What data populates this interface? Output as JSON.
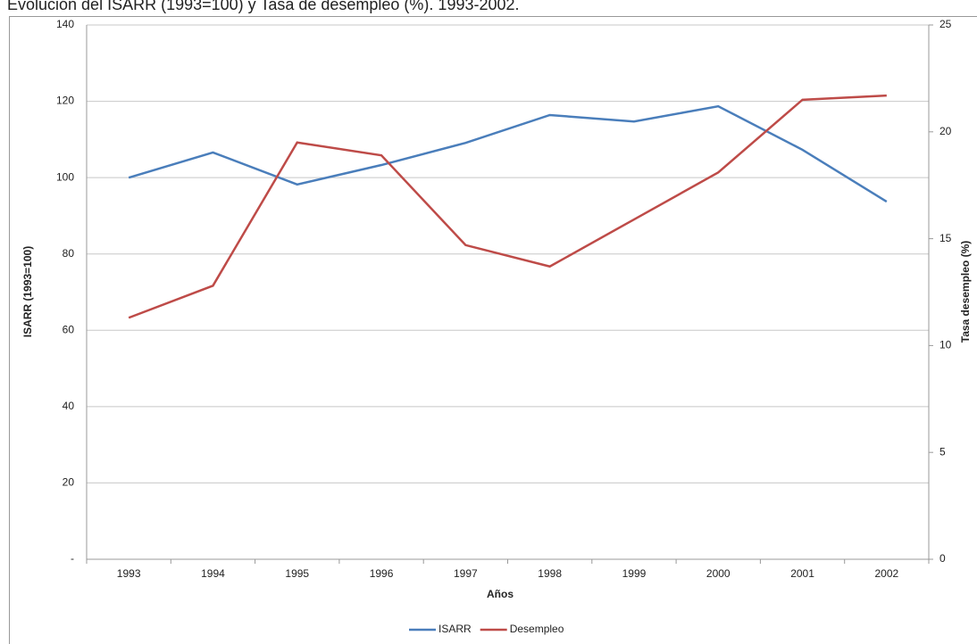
{
  "chart_data": {
    "type": "line",
    "title": "Evolución del ISARR (1993=100) y Tasa de desempleo (%). 1993-2002.",
    "x_label": "Años",
    "y_label": "ISARR (1993=100)",
    "y2_label": "Tasa desempleo (%)",
    "categories": [
      "1993",
      "1994",
      "1995",
      "1996",
      "1997",
      "1998",
      "1999",
      "2000",
      "2001",
      "2002"
    ],
    "series": [
      {
        "name": "ISARR",
        "color": "#4a7ebb",
        "values": [
          100,
          106.6,
          98.2,
          103.3,
          109.1,
          116.4,
          114.7,
          118.7,
          107.3,
          93.7
        ]
      },
      {
        "name": "Desempleo",
        "color": "#be4b48",
        "axis": "y2",
        "values": [
          11.3,
          12.8,
          19.5,
          18.9,
          14.7,
          13.7,
          15.9,
          18.1,
          21.5,
          21.7
        ]
      }
    ],
    "ylim": [
      0,
      140
    ],
    "yticks": [
      {
        "value": 0,
        "label": "-"
      },
      20,
      40,
      60,
      80,
      100,
      120,
      140
    ],
    "y2lim": [
      0,
      25
    ],
    "y2ticks": [
      0,
      5,
      10,
      15,
      20,
      25
    ],
    "grid": true,
    "legend": "bottom"
  }
}
